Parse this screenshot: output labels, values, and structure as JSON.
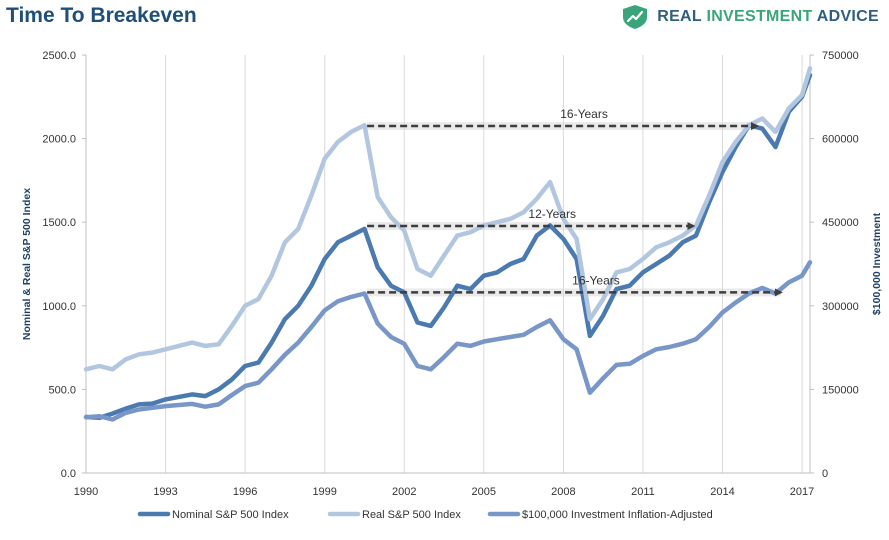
{
  "page": {
    "title": "Time To Breakeven",
    "brand": {
      "name_part1": "REAL",
      "name_part2": "INVESTMENT",
      "name_part3": "ADVICE",
      "logo_icon": "chart-shield-icon"
    },
    "colors": {
      "title": "#1f4e79",
      "brand_dark": "#2f5f7f",
      "brand_green": "#3aa57a"
    }
  },
  "chart_data": {
    "type": "line",
    "title": "Time To Breakeven",
    "xlabel": "",
    "ylabel": "Nominal & Real S&P 500 Index",
    "y2label": "$100,000 Investment",
    "xlim": [
      1990,
      2017.3
    ],
    "ylim": [
      0,
      2500
    ],
    "y2lim": [
      0,
      750000
    ],
    "x_ticks": [
      1990,
      1993,
      1996,
      1999,
      2002,
      2005,
      2008,
      2011,
      2014,
      2017
    ],
    "x_tick_labels": [
      "1990",
      "1993",
      "1996",
      "1999",
      "2002",
      "2005",
      "2008",
      "2011",
      "2014",
      "2017"
    ],
    "y_ticks": [
      0,
      500,
      1000,
      1500,
      2000,
      2500
    ],
    "y_tick_labels": [
      "0.0",
      "500.0",
      "1000.0",
      "1500.0",
      "2000.0",
      "2500.0"
    ],
    "y2_ticks": [
      0,
      150000,
      300000,
      450000,
      600000,
      750000
    ],
    "y2_tick_labels": [
      "0",
      "150000",
      "300000",
      "450000",
      "600000",
      "750000"
    ],
    "grid": {
      "vertical": true,
      "horizontal": false
    },
    "legend": {
      "placement": "bottom"
    },
    "series": [
      {
        "name": "Nominal S&P 500 Index",
        "axis": "left",
        "color": "#4a7ab0",
        "x": [
          1990,
          1990.5,
          1991,
          1991.5,
          1992,
          1992.5,
          1993,
          1993.5,
          1994,
          1994.5,
          1995,
          1995.5,
          1996,
          1996.5,
          1997,
          1997.5,
          1998,
          1998.5,
          1999,
          1999.5,
          2000,
          2000.5,
          2001,
          2001.5,
          2002,
          2002.5,
          2003,
          2003.5,
          2004,
          2004.5,
          2005,
          2005.5,
          2006,
          2006.5,
          2007,
          2007.5,
          2008,
          2008.5,
          2009,
          2009.5,
          2010,
          2010.5,
          2011,
          2011.5,
          2012,
          2012.5,
          2013,
          2013.5,
          2014,
          2014.5,
          2015,
          2015.5,
          2016,
          2016.5,
          2017,
          2017.3
        ],
        "values": [
          335,
          330,
          355,
          385,
          410,
          415,
          440,
          455,
          470,
          460,
          500,
          560,
          640,
          660,
          780,
          920,
          1000,
          1120,
          1280,
          1380,
          1420,
          1460,
          1230,
          1120,
          1080,
          900,
          880,
          990,
          1120,
          1100,
          1180,
          1200,
          1250,
          1280,
          1420,
          1480,
          1400,
          1280,
          820,
          940,
          1100,
          1120,
          1200,
          1250,
          1300,
          1380,
          1420,
          1620,
          1800,
          1950,
          2080,
          2060,
          1950,
          2160,
          2250,
          2380
        ]
      },
      {
        "name": "Real S&P 500 Index",
        "axis": "left",
        "color": "#b3c6e0",
        "x": [
          1990,
          1990.5,
          1991,
          1991.5,
          1992,
          1992.5,
          1993,
          1993.5,
          1994,
          1994.5,
          1995,
          1995.5,
          1996,
          1996.5,
          1997,
          1997.5,
          1998,
          1998.5,
          1999,
          1999.5,
          2000,
          2000.5,
          2001,
          2001.5,
          2002,
          2002.5,
          2003,
          2003.5,
          2004,
          2004.5,
          2005,
          2005.5,
          2006,
          2006.5,
          2007,
          2007.5,
          2008,
          2008.5,
          2009,
          2009.5,
          2010,
          2010.5,
          2011,
          2011.5,
          2012,
          2012.5,
          2013,
          2013.5,
          2014,
          2014.5,
          2015,
          2015.5,
          2016,
          2016.5,
          2017,
          2017.3
        ],
        "values": [
          620,
          640,
          620,
          680,
          710,
          720,
          740,
          760,
          780,
          760,
          770,
          880,
          1000,
          1040,
          1180,
          1380,
          1460,
          1660,
          1880,
          1980,
          2040,
          2080,
          1650,
          1530,
          1450,
          1220,
          1180,
          1300,
          1420,
          1440,
          1480,
          1500,
          1520,
          1560,
          1640,
          1740,
          1520,
          1400,
          920,
          1040,
          1200,
          1220,
          1280,
          1350,
          1380,
          1420,
          1480,
          1660,
          1860,
          1980,
          2080,
          2120,
          2040,
          2180,
          2260,
          2420
        ]
      },
      {
        "name": "$100,000 Investment Inflation-Adjusted",
        "axis": "right",
        "color": "#7996c8",
        "x": [
          1990,
          1990.5,
          1991,
          1991.5,
          1992,
          1992.5,
          1993,
          1993.5,
          1994,
          1994.5,
          1995,
          1995.5,
          1996,
          1996.5,
          1997,
          1997.5,
          1998,
          1998.5,
          1999,
          1999.5,
          2000,
          2000.5,
          2001,
          2001.5,
          2002,
          2002.5,
          2003,
          2003.5,
          2004,
          2004.5,
          2005,
          2005.5,
          2006,
          2006.5,
          2007,
          2007.5,
          2008,
          2008.5,
          2009,
          2009.5,
          2010,
          2010.5,
          2011,
          2011.5,
          2012,
          2012.5,
          2013,
          2013.5,
          2014,
          2014.5,
          2015,
          2015.5,
          2016,
          2016.5,
          2017,
          2017.3
        ],
        "values": [
          100000,
          102000,
          96000,
          108000,
          114000,
          117000,
          120000,
          122000,
          124000,
          119000,
          123000,
          140000,
          156000,
          162000,
          186000,
          212000,
          234000,
          262000,
          292000,
          308000,
          316000,
          322000,
          268000,
          244000,
          232000,
          192000,
          186000,
          208000,
          232000,
          228000,
          236000,
          240000,
          244000,
          248000,
          262000,
          274000,
          240000,
          222000,
          144000,
          170000,
          194000,
          196000,
          210000,
          222000,
          226000,
          232000,
          240000,
          262000,
          288000,
          306000,
          322000,
          332000,
          322000,
          342000,
          354000,
          378000
        ]
      }
    ],
    "annotations": [
      {
        "label": "16-Years",
        "from": [
          2000.6,
          2075
        ],
        "to": [
          2015.3,
          2075
        ],
        "axis": "left"
      },
      {
        "label": "12-Years",
        "from": [
          2000.6,
          1477
        ],
        "to": [
          2012.9,
          1477
        ],
        "axis": "left"
      },
      {
        "label": "16-Years",
        "from": [
          2000.6,
          1080
        ],
        "to": [
          2016.2,
          1080
        ],
        "axis": "left"
      }
    ]
  }
}
